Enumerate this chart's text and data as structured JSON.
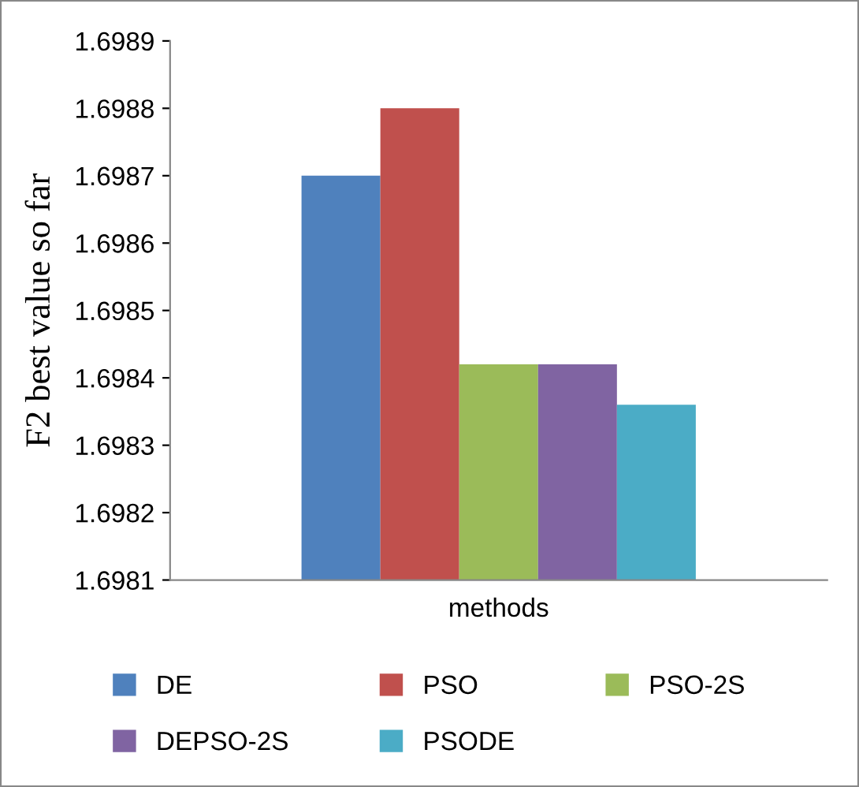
{
  "chart_data": {
    "type": "bar",
    "ylabel": "F2 best value so far",
    "categories": [
      "methods"
    ],
    "series": [
      {
        "name": "DE",
        "color": "#4f81bd",
        "values": [
          1.6987
        ]
      },
      {
        "name": "PSO",
        "color": "#c0504d",
        "values": [
          1.6988
        ]
      },
      {
        "name": "PSO-2S",
        "color": "#9bbb59",
        "values": [
          1.69842
        ]
      },
      {
        "name": "DEPSO-2S",
        "color": "#8064a2",
        "values": [
          1.69842
        ]
      },
      {
        "name": "PSODE",
        "color": "#4bacc6",
        "values": [
          1.69836
        ]
      }
    ],
    "ylim": [
      1.6981,
      1.6989
    ],
    "yticks": [
      1.6981,
      1.6982,
      1.6983,
      1.6984,
      1.6985,
      1.6986,
      1.6987,
      1.6988,
      1.6989
    ],
    "grid": false,
    "legend": "bottom"
  }
}
